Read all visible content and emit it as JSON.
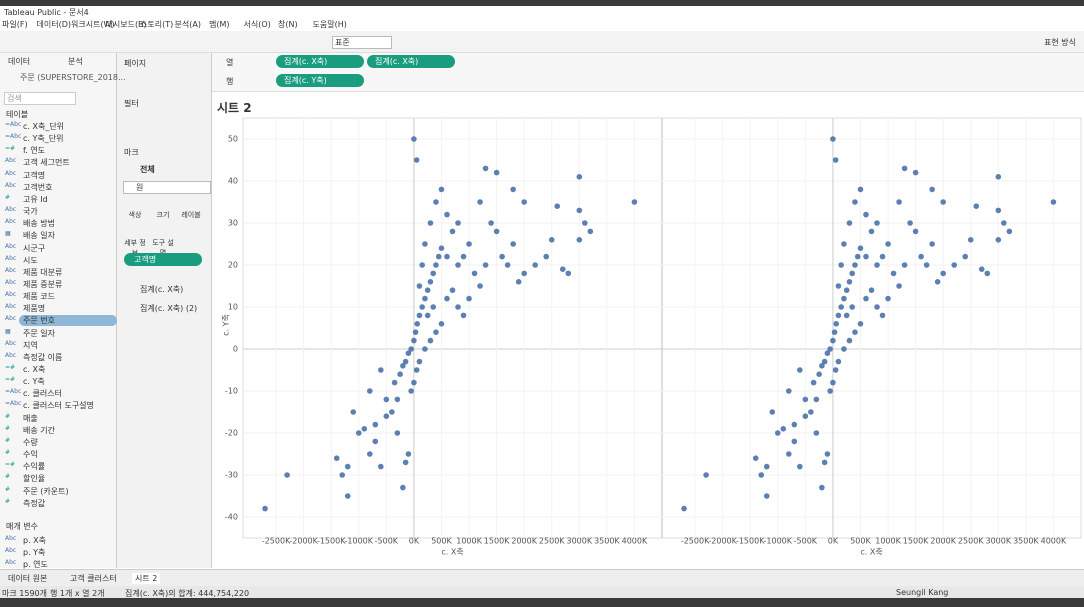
{
  "window": {
    "title": "Tableau Public - 문서4"
  },
  "menu": [
    "파일(F)",
    "데이터(D)",
    "워크시트(W)",
    "대시보드(B)",
    "스토리(T)",
    "분석(A)",
    "맵(M)",
    "서식(O)",
    "창(N)",
    "도움말(H)"
  ],
  "toolbar": {
    "dropdown": "표준",
    "show_me": "표현 방식"
  },
  "data_pane": {
    "tabs": [
      "데이터",
      "분석"
    ],
    "source": "주문 (SUPERSTORE_2018...",
    "search": "검색",
    "tables_header": "테이블",
    "fields": [
      [
        "=Abc",
        "c. X축_단위"
      ],
      [
        "=Abc",
        "c. Y축_단위"
      ],
      [
        "=#",
        "f. 연도"
      ],
      [
        "Abc",
        "고객 세그먼트"
      ],
      [
        "Abc",
        "고객명"
      ],
      [
        "Abc",
        "고객번호"
      ],
      [
        "#",
        "고유 Id"
      ],
      [
        "Abc",
        "국가"
      ],
      [
        "Abc",
        "배송 방법"
      ],
      [
        "▦",
        "배송 일자"
      ],
      [
        "Abc",
        "시군구"
      ],
      [
        "Abc",
        "시도"
      ],
      [
        "Abc",
        "제품 대분류"
      ],
      [
        "Abc",
        "제품 중분류"
      ],
      [
        "Abc",
        "제품 코드"
      ],
      [
        "Abc",
        "제품명"
      ],
      [
        "Abc",
        "주문 번호"
      ],
      [
        "▦",
        "주문 일자"
      ],
      [
        "Abc",
        "지역"
      ],
      [
        "Abc",
        "측정값 이름"
      ],
      [
        "=#",
        "c. X축"
      ],
      [
        "=#",
        "c. Y축"
      ],
      [
        "=Abc",
        "c. 클러스터"
      ],
      [
        "=Abc",
        "c. 클러스터 도구설명"
      ],
      [
        "#",
        "매출"
      ],
      [
        "#",
        "배송 기간"
      ],
      [
        "#",
        "수량"
      ],
      [
        "#",
        "수익"
      ],
      [
        "=#",
        "수익률"
      ],
      [
        "#",
        "할인율"
      ],
      [
        "#",
        "주문 (카운트)"
      ],
      [
        "#",
        "측정값"
      ]
    ],
    "params_header": "매개 변수",
    "params": [
      [
        "Abc",
        "p. X축"
      ],
      [
        "Abc",
        "p. Y축"
      ],
      [
        "Abc",
        "p. 연도"
      ]
    ]
  },
  "shelves": {
    "pages": "페이지",
    "filters": "필터",
    "marks": "마크",
    "columns_label": "열",
    "rows_label": "행",
    "columns": [
      "집계(c. X축)",
      "집계(c. X축)"
    ],
    "rows": [
      "집계(c. Y축)"
    ]
  },
  "marks_card": {
    "all": "전체",
    "mark_type": "원",
    "buttons": [
      "색상",
      "크기",
      "레이블",
      "세부 정보",
      "도구 설명"
    ],
    "pill": "고객명",
    "sub": [
      "집계(c. X축)",
      "집계(c. X축) (2)"
    ]
  },
  "sheet": {
    "title": "시트 2"
  },
  "chart_data": {
    "type": "scatter",
    "xlabel": "c. X축",
    "ylabel": "c. Y축",
    "color": "#4a72a8",
    "grid": true,
    "xlim": [
      -3100000,
      4500000
    ],
    "ylim": [
      -45,
      55
    ],
    "xticks": [
      {
        "value": -2500000,
        "label": "-2500K"
      },
      {
        "value": -2000000,
        "label": "-2000K"
      },
      {
        "value": -1500000,
        "label": "-1500K"
      },
      {
        "value": -1000000,
        "label": "-1000K"
      },
      {
        "value": -500000,
        "label": "-500K"
      },
      {
        "value": 0,
        "label": "0K"
      },
      {
        "value": 500000,
        "label": "500K"
      },
      {
        "value": 1000000,
        "label": "1000K"
      },
      {
        "value": 1500000,
        "label": "1500K"
      },
      {
        "value": 2000000,
        "label": "2000K"
      },
      {
        "value": 2500000,
        "label": "2500K"
      },
      {
        "value": 3000000,
        "label": "3000K"
      },
      {
        "value": 3500000,
        "label": "3500K"
      },
      {
        "value": 4000000,
        "label": "4000K"
      }
    ],
    "yticks": [
      -40,
      -30,
      -20,
      -10,
      0,
      10,
      20,
      30,
      40,
      50
    ],
    "x": [
      -2700000,
      -2300000,
      -1200000,
      -1400000,
      -1100000,
      -1000000,
      -900000,
      -1300000,
      -1200000,
      -800000,
      -700000,
      -600000,
      -200000,
      -150000,
      -100000,
      -300000,
      -400000,
      -500000,
      -350000,
      -250000,
      -200000,
      -150000,
      -100000,
      -50000,
      0,
      30000,
      60000,
      100000,
      150000,
      200000,
      250000,
      300000,
      350000,
      400000,
      450000,
      500000,
      100000,
      150000,
      200000,
      300000,
      400000,
      500000,
      600000,
      700000,
      800000,
      900000,
      1000000,
      1100000,
      1200000,
      1300000,
      1400000,
      1500000,
      1600000,
      1700000,
      1800000,
      1900000,
      2000000,
      2200000,
      2400000,
      2500000,
      2700000,
      2800000,
      3000000,
      3100000,
      3200000,
      3000000,
      2600000,
      2000000,
      1800000,
      1500000,
      1300000,
      3000000,
      4000000,
      0,
      50000,
      600000,
      700000,
      800000,
      900000,
      1000000,
      500000,
      400000,
      300000,
      200000,
      100000,
      50000,
      0,
      -50000,
      -600000,
      -700000,
      -500000,
      -800000,
      -300000,
      1200000,
      800000,
      600000,
      350000,
      250000
    ],
    "y": [
      -38,
      -30,
      -35,
      -26,
      -15,
      -20,
      -19,
      -30,
      -28,
      -25,
      -22,
      -28,
      -33,
      -27,
      -25,
      -20,
      -15,
      -12,
      -8,
      -6,
      -4,
      -3,
      -1,
      0,
      2,
      4,
      6,
      8,
      10,
      12,
      14,
      16,
      18,
      20,
      22,
      24,
      15,
      20,
      25,
      30,
      35,
      38,
      32,
      28,
      20,
      22,
      25,
      18,
      15,
      20,
      30,
      28,
      22,
      20,
      25,
      16,
      18,
      20,
      22,
      26,
      19,
      18,
      26,
      30,
      28,
      33,
      34,
      35,
      38,
      42,
      43,
      41,
      35,
      50,
      45,
      12,
      14,
      10,
      8,
      12,
      6,
      4,
      2,
      0,
      -3,
      -5,
      -8,
      -10,
      -5,
      -18,
      -16,
      -10,
      -12,
      35,
      30,
      22,
      10,
      8
    ]
  },
  "tabs": [
    "데이터 원본",
    "고객 클러스터",
    "시트 2"
  ],
  "status": {
    "marks": "마크 1590개",
    "rows": "행 1개 x 열 2개",
    "sum": "집계(c. X축)의 합계: 444,754,220",
    "user": "Seungil Kang"
  }
}
